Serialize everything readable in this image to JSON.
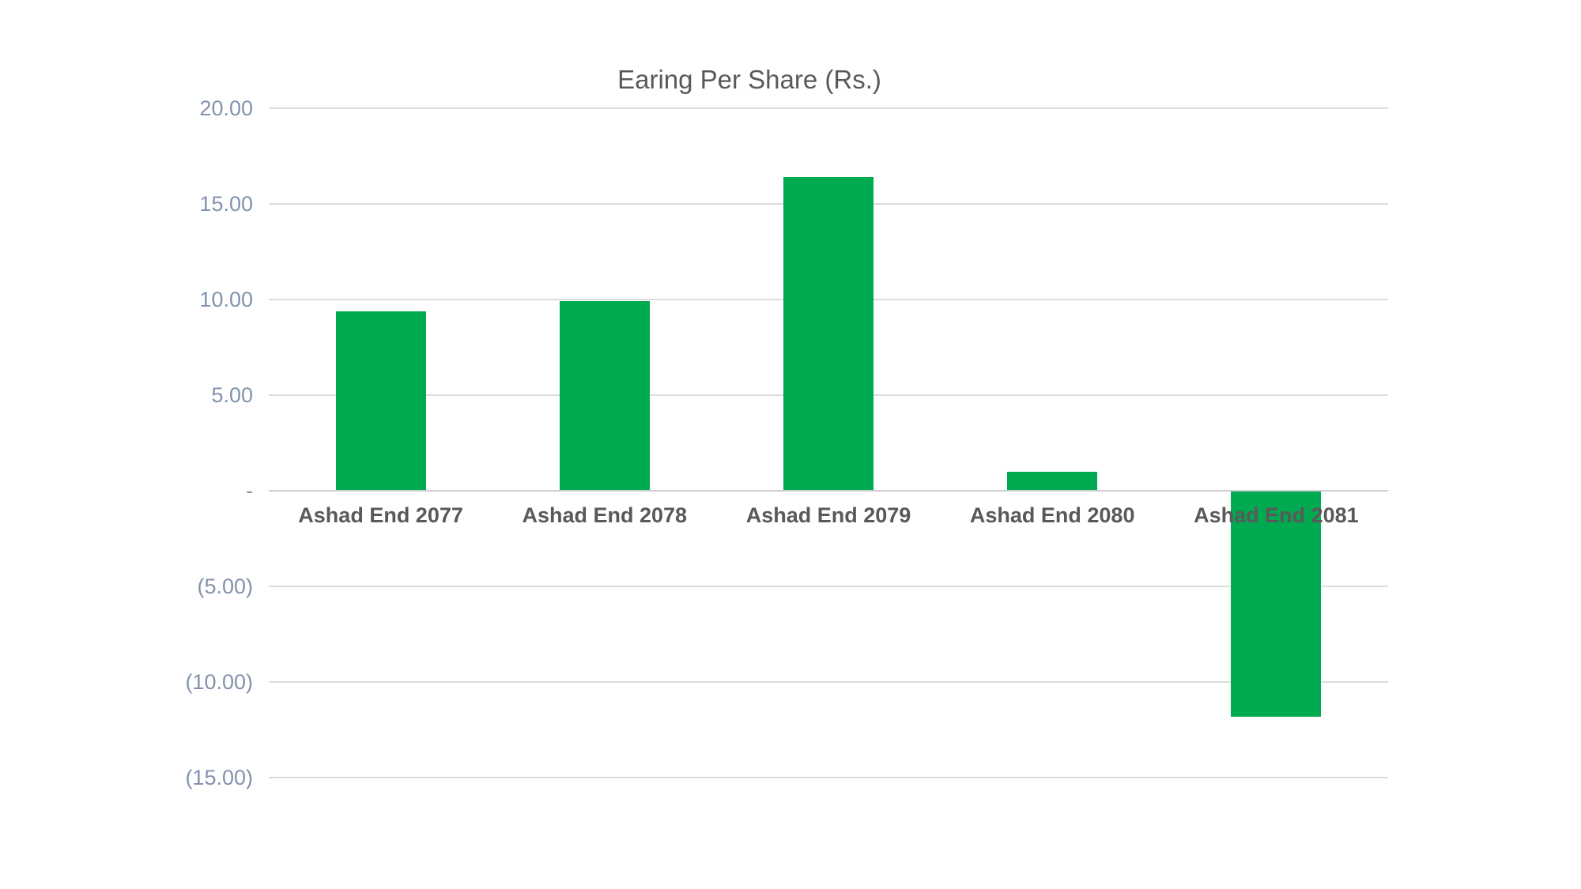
{
  "chart_data": {
    "type": "bar",
    "title": "Earing Per Share (Rs.)",
    "categories": [
      "Ashad End 2077",
      "Ashad End 2078",
      "Ashad End 2079",
      "Ashad End 2080",
      "Ashad End 2081"
    ],
    "values": [
      9.4,
      9.9,
      16.4,
      1.0,
      -11.8
    ],
    "ylim": [
      -15,
      20
    ],
    "ytick_step": 5,
    "yticks": [
      {
        "value": 20,
        "label": "20.00"
      },
      {
        "value": 15,
        "label": "15.00"
      },
      {
        "value": 10,
        "label": "10.00"
      },
      {
        "value": 5,
        "label": "5.00"
      },
      {
        "value": 0,
        "label": "-"
      },
      {
        "value": -5,
        "label": "(5.00)"
      },
      {
        "value": -10,
        "label": "(10.00)"
      },
      {
        "value": -15,
        "label": "(15.00)"
      }
    ],
    "negative_number_format": "parentheses",
    "grid": true,
    "legend": "none",
    "colors": {
      "bar": "#00AA50",
      "gridline": "#DCDCDC",
      "axis_line": "#CDCDCD",
      "ytick_label": "#8292AC",
      "xtick_label": "#595959",
      "title": "#595959",
      "background": "#FFFFFF"
    }
  }
}
